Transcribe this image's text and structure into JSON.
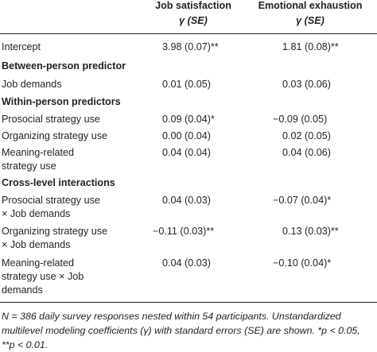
{
  "header": {
    "col1_title": "Job satisfaction",
    "col1_sub": "γ (SE)",
    "col2_title": "Emotional exhaustion",
    "col2_sub": "γ (SE)"
  },
  "rows": {
    "intercept": {
      "label": "Intercept",
      "js": "3.98 (0.07)**",
      "ee": "1.81 (0.08)**"
    },
    "between_header": "Between-person predictor",
    "job_demands": {
      "label": "Job demands",
      "js": "0.01 (0.05)",
      "ee": "0.03 (0.06)"
    },
    "within_header": "Within-person predictors",
    "prosocial": {
      "label": "Prosocial strategy use",
      "js": "0.09 (0.04)*",
      "ee": "−0.09 (0.05)"
    },
    "organizing": {
      "label": "Organizing strategy use",
      "js": "0.00 (0.04)",
      "ee": "0.02 (0.05)"
    },
    "meaning": {
      "label1": "Meaning-related",
      "label2": "strategy use",
      "js": "0.04 (0.04)",
      "ee": "0.04 (0.06)"
    },
    "cross_header": "Cross-level interactions",
    "prosocial_x": {
      "label1": "Prosocial strategy use",
      "label2": "× Job demands",
      "js": "0.04 (0.03)",
      "ee": "−0.07 (0.04)*"
    },
    "organizing_x": {
      "label1": "Organizing strategy use",
      "label2": "× Job demands",
      "js": "−0.11 (0.03)**",
      "ee": "0.13 (0.03)**"
    },
    "meaning_x": {
      "label1": "Meaning-related",
      "label2": "strategy use × Job",
      "label3": "demands",
      "js": "0.04 (0.03)",
      "ee": "−0.10 (0.04)*"
    }
  },
  "footnote": {
    "line1": "N = 386 daily survey responses nested within 54 participants. Unstandardized",
    "line2": "multilevel modeling coefficients (γ) with standard errors (SE) are shown. *p < 0.05,",
    "line3": "**p < 0.01."
  }
}
